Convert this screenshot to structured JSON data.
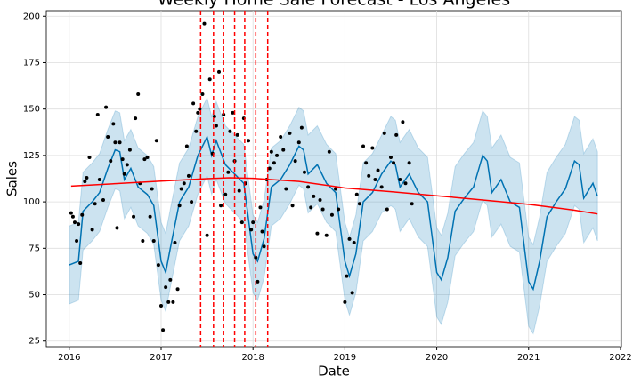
{
  "chart_data": {
    "type": "forecast",
    "title": "Weekly Home Sale Forecast - Los Angeles",
    "xlabel": "Date",
    "ylabel": "Sales",
    "xlim": [
      2015.75,
      2022.01
    ],
    "xticks": [
      2016,
      2017,
      2018,
      2019,
      2020,
      2021,
      2022
    ],
    "ylim": [
      22,
      203
    ],
    "yticks": [
      25,
      50,
      75,
      100,
      125,
      150,
      175,
      200
    ],
    "grid": true,
    "forecast": {
      "color": "#0072b2",
      "band_color": "#0072b2",
      "x": [
        2016.0,
        2016.1,
        2016.15,
        2016.25,
        2016.33,
        2016.42,
        2016.5,
        2016.55,
        2016.6,
        2016.67,
        2016.75,
        2016.85,
        2016.92,
        2017.0,
        2017.05,
        2017.1,
        2017.2,
        2017.3,
        2017.4,
        2017.5,
        2017.55,
        2017.6,
        2017.7,
        2017.8,
        2017.9,
        2018.0,
        2018.05,
        2018.12,
        2018.2,
        2018.3,
        2018.4,
        2018.5,
        2018.55,
        2018.6,
        2018.7,
        2018.8,
        2018.9,
        2019.0,
        2019.05,
        2019.12,
        2019.2,
        2019.3,
        2019.4,
        2019.5,
        2019.55,
        2019.6,
        2019.7,
        2019.8,
        2019.9,
        2020.0,
        2020.05,
        2020.12,
        2020.2,
        2020.3,
        2020.4,
        2020.5,
        2020.55,
        2020.6,
        2020.7,
        2020.8,
        2020.9,
        2021.0,
        2021.05,
        2021.12,
        2021.2,
        2021.3,
        2021.4,
        2021.5,
        2021.55,
        2021.6,
        2021.7,
        2021.75
      ],
      "yhat": [
        66,
        68,
        95,
        100,
        105,
        118,
        128,
        127,
        112,
        118,
        108,
        104,
        98,
        68,
        62,
        75,
        100,
        108,
        125,
        135,
        125,
        133,
        120,
        115,
        110,
        72,
        68,
        80,
        108,
        112,
        120,
        130,
        128,
        115,
        120,
        110,
        105,
        68,
        60,
        72,
        100,
        105,
        115,
        122,
        120,
        108,
        115,
        105,
        100,
        62,
        58,
        70,
        95,
        102,
        108,
        125,
        122,
        105,
        112,
        100,
        97,
        57,
        53,
        68,
        92,
        100,
        107,
        122,
        120,
        102,
        110,
        103
      ],
      "yhat_upper": [
        87,
        89,
        116,
        121,
        126,
        139,
        149,
        148,
        133,
        139,
        129,
        125,
        119,
        89,
        83,
        96,
        121,
        129,
        146,
        156,
        146,
        154,
        141,
        136,
        131,
        93,
        89,
        101,
        129,
        133,
        141,
        151,
        149,
        136,
        141,
        131,
        126,
        89,
        81,
        93,
        121,
        126,
        136,
        146,
        144,
        132,
        139,
        129,
        124,
        86,
        82,
        94,
        119,
        126,
        132,
        149,
        146,
        129,
        136,
        124,
        121,
        81,
        77,
        92,
        116,
        124,
        131,
        146,
        144,
        126,
        134,
        127
      ],
      "yhat_lower": [
        45,
        47,
        74,
        79,
        84,
        97,
        107,
        106,
        91,
        97,
        87,
        83,
        77,
        47,
        41,
        54,
        79,
        87,
        104,
        114,
        104,
        112,
        99,
        94,
        89,
        51,
        47,
        59,
        87,
        91,
        99,
        109,
        107,
        94,
        99,
        89,
        84,
        47,
        39,
        51,
        79,
        84,
        94,
        98,
        96,
        84,
        91,
        81,
        76,
        38,
        34,
        46,
        71,
        78,
        84,
        101,
        98,
        81,
        88,
        76,
        73,
        33,
        29,
        44,
        68,
        76,
        83,
        98,
        96,
        78,
        86,
        79
      ]
    },
    "trend": {
      "color": "#ff0000",
      "x": [
        2016.02,
        2016.5,
        2017.0,
        2017.5,
        2017.75,
        2018.0,
        2018.5,
        2019.0,
        2019.5,
        2020.0,
        2020.5,
        2021.0,
        2021.5,
        2021.75
      ],
      "values": [
        108.5,
        109.8,
        111.2,
        112.5,
        113,
        112.7,
        111,
        107.5,
        105.5,
        103.3,
        101,
        98.7,
        95.5,
        93.5
      ]
    },
    "changepoints": {
      "color": "#ff0000",
      "x": [
        2017.43,
        2017.57,
        2017.68,
        2017.8,
        2017.91,
        2018.03,
        2018.16
      ]
    },
    "actual": {
      "color": "#000000",
      "x": [
        2016.02,
        2016.04,
        2016.06,
        2016.08,
        2016.1,
        2016.12,
        2016.14,
        2016.17,
        2016.19,
        2016.22,
        2016.25,
        2016.28,
        2016.31,
        2016.33,
        2016.37,
        2016.4,
        2016.42,
        2016.45,
        2016.48,
        2016.5,
        2016.52,
        2016.55,
        2016.58,
        2016.6,
        2016.63,
        2016.66,
        2016.7,
        2016.72,
        2016.75,
        2016.77,
        2016.8,
        2016.82,
        2016.85,
        2016.88,
        2016.9,
        2016.92,
        2016.95,
        2016.97,
        2017.0,
        2017.02,
        2017.05,
        2017.08,
        2017.1,
        2017.13,
        2017.15,
        2017.18,
        2017.2,
        2017.22,
        2017.25,
        2017.28,
        2017.3,
        2017.33,
        2017.35,
        2017.38,
        2017.4,
        2017.42,
        2017.45,
        2017.47,
        2017.5,
        2017.53,
        2017.56,
        2017.58,
        2017.6,
        2017.63,
        2017.65,
        2017.68,
        2017.7,
        2017.73,
        2017.75,
        2017.78,
        2017.8,
        2017.83,
        2017.85,
        2017.88,
        2017.9,
        2017.92,
        2017.95,
        2017.98,
        2018.0,
        2018.03,
        2018.05,
        2018.08,
        2018.1,
        2018.12,
        2018.15,
        2018.18,
        2018.2,
        2018.23,
        2018.26,
        2018.3,
        2018.33,
        2018.36,
        2018.4,
        2018.43,
        2018.46,
        2018.5,
        2018.53,
        2018.56,
        2018.6,
        2018.63,
        2018.66,
        2018.7,
        2018.73,
        2018.76,
        2018.8,
        2018.83,
        2018.86,
        2018.9,
        2018.93,
        2019.0,
        2019.02,
        2019.05,
        2019.08,
        2019.1,
        2019.13,
        2019.16,
        2019.2,
        2019.23,
        2019.26,
        2019.3,
        2019.33,
        2019.36,
        2019.4,
        2019.43,
        2019.46,
        2019.5,
        2019.53,
        2019.56,
        2019.6,
        2019.63,
        2019.66,
        2019.7,
        2019.73
      ],
      "values": [
        94,
        92,
        89,
        79,
        88,
        67,
        93,
        111,
        113,
        124,
        85,
        99,
        147,
        112,
        101,
        151,
        135,
        122,
        142,
        132,
        86,
        132,
        123,
        115,
        120,
        128,
        92,
        145,
        158,
        110,
        79,
        123,
        124,
        92,
        107,
        79,
        133,
        66,
        44,
        31,
        54,
        46,
        58,
        46,
        78,
        53,
        98,
        107,
        110,
        130,
        114,
        100,
        153,
        138,
        148,
        150,
        158,
        196,
        82,
        166,
        126,
        146,
        141,
        170,
        98,
        147,
        104,
        116,
        138,
        148,
        122,
        136,
        106,
        89,
        145,
        110,
        133,
        85,
        89,
        70,
        57,
        97,
        84,
        76,
        112,
        118,
        127,
        121,
        125,
        135,
        128,
        107,
        137,
        98,
        122,
        132,
        140,
        116,
        108,
        97,
        103,
        83,
        101,
        96,
        82,
        127,
        93,
        107,
        96,
        46,
        60,
        80,
        51,
        78,
        104,
        99,
        130,
        121,
        114,
        129,
        112,
        117,
        108,
        137,
        96,
        124,
        121,
        136,
        112,
        143,
        110,
        121,
        99
      ]
    }
  }
}
